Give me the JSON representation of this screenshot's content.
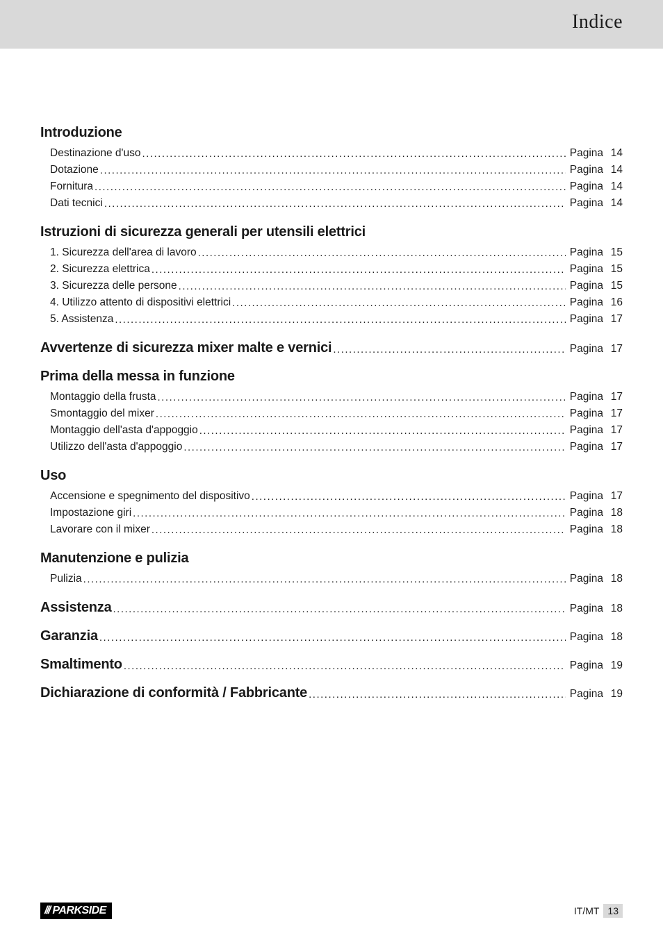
{
  "header": {
    "title": "Indice"
  },
  "labels": {
    "page_word": "Pagina"
  },
  "colors": {
    "header_bg": "#d9d9d9",
    "text": "#1a1a1a",
    "brand_bg": "#000000",
    "brand_fg": "#ffffff",
    "pnum_bg": "#d9d9d9",
    "page_bg": "#ffffff"
  },
  "typography": {
    "heading_fontsize_pt": 15,
    "body_fontsize_pt": 11.5,
    "header_title_fontsize_pt": 21,
    "heading_weight": 800,
    "body_weight": 400
  },
  "sections": [
    {
      "heading": "Introduzione",
      "inline_page": null,
      "items": [
        {
          "label": "Destinazione d'uso",
          "page": 14
        },
        {
          "label": "Dotazione",
          "page": 14
        },
        {
          "label": "Fornitura",
          "page": 14
        },
        {
          "label": "Dati tecnici",
          "page": 14
        }
      ]
    },
    {
      "heading": "Istruzioni di sicurezza generali per utensili elettrici",
      "inline_page": null,
      "items": [
        {
          "label": "1. Sicurezza dell'area di lavoro",
          "page": 15
        },
        {
          "label": "2. Sicurezza elettrica",
          "page": 15
        },
        {
          "label": "3. Sicurezza delle persone",
          "page": 15
        },
        {
          "label": "4. Utilizzo attento di dispositivi elettrici",
          "page": 16
        },
        {
          "label": "5. Assistenza",
          "page": 17
        }
      ]
    },
    {
      "heading": "Avvertenze di sicurezza mixer malte e vernici",
      "inline_page": 17,
      "items": []
    },
    {
      "heading": "Prima della messa in funzione",
      "inline_page": null,
      "items": [
        {
          "label": "Montaggio della frusta",
          "page": 17
        },
        {
          "label": "Smontaggio del mixer",
          "page": 17
        },
        {
          "label": "Montaggio dell'asta d'appoggio",
          "page": 17
        },
        {
          "label": "Utilizzo dell'asta d'appoggio",
          "page": 17
        }
      ]
    },
    {
      "heading": "Uso",
      "inline_page": null,
      "items": [
        {
          "label": "Accensione e spegnimento del dispositivo",
          "page": 17
        },
        {
          "label": "Impostazione giri",
          "page": 18
        },
        {
          "label": "Lavorare con il mixer",
          "page": 18
        }
      ]
    },
    {
      "heading": "Manutenzione e pulizia",
      "inline_page": null,
      "items": [
        {
          "label": "Pulizia",
          "page": 18
        }
      ]
    },
    {
      "heading": "Assistenza",
      "inline_page": 18,
      "items": []
    },
    {
      "heading": "Garanzia",
      "inline_page": 18,
      "items": []
    },
    {
      "heading": "Smaltimento",
      "inline_page": 19,
      "items": []
    },
    {
      "heading": "Dichiarazione di conformità / Fabbricante",
      "inline_page": 19,
      "items": []
    }
  ],
  "footer": {
    "brand_slashes": "///",
    "brand_name": "PARKSIDE",
    "lang": "IT/MT",
    "page_number": 13
  }
}
